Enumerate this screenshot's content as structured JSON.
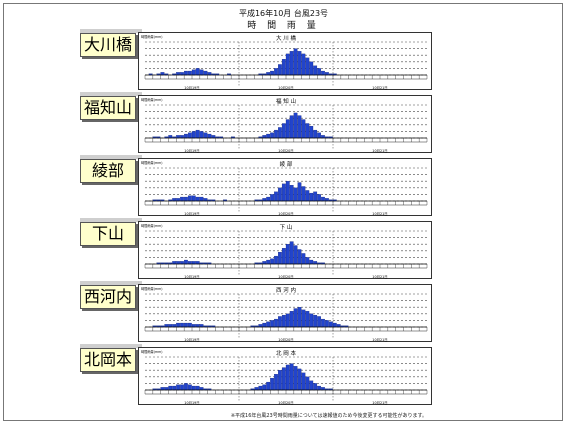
{
  "header": {
    "title": "平成16年10月 台風23号",
    "subtitle": "時 間 雨 量"
  },
  "footnote": "※平成16年台風23号時間雨量については速報値のため今後変更する可能性があります。",
  "colors": {
    "bar": "#2244cc",
    "label_bg": "#ffffcc",
    "grid": "#444444"
  },
  "chart_data": [
    {
      "type": "bar",
      "station": "大川橋",
      "title": "大 川 橋",
      "ylabel": "時間雨量(mm)",
      "x_ticks": [
        "10月19日",
        "10月20日",
        "10月21日"
      ],
      "values": [
        0,
        1,
        0,
        1,
        2,
        1,
        0,
        1,
        2,
        2,
        3,
        3,
        4,
        5,
        4,
        3,
        2,
        1,
        1,
        0,
        0,
        1,
        0,
        0,
        0,
        0,
        0,
        0,
        0,
        1,
        1,
        2,
        3,
        5,
        8,
        12,
        16,
        18,
        20,
        18,
        16,
        13,
        10,
        7,
        5,
        3,
        2,
        1,
        1,
        0,
        0,
        0,
        0,
        0,
        0,
        0,
        0,
        0,
        0,
        0,
        0,
        0,
        0,
        0,
        0,
        0,
        0,
        0,
        0,
        0,
        0,
        0
      ],
      "ylim": [
        0,
        25
      ]
    },
    {
      "type": "bar",
      "station": "福知山",
      "title": "福 知 山",
      "ylabel": "時間雨量(mm)",
      "x_ticks": [
        "10月19日",
        "10月20日",
        "10月21日"
      ],
      "values": [
        0,
        0,
        1,
        1,
        0,
        1,
        2,
        1,
        2,
        2,
        3,
        4,
        5,
        6,
        5,
        4,
        3,
        2,
        1,
        1,
        0,
        0,
        1,
        0,
        0,
        0,
        0,
        0,
        0,
        1,
        2,
        3,
        4,
        6,
        8,
        11,
        14,
        17,
        19,
        17,
        14,
        11,
        9,
        6,
        4,
        2,
        1,
        1,
        0,
        0,
        0,
        0,
        0,
        0,
        0,
        0,
        0,
        0,
        0,
        0,
        0,
        0,
        0,
        0,
        0,
        0,
        0,
        0,
        0,
        0,
        0,
        0
      ],
      "ylim": [
        0,
        25
      ]
    },
    {
      "type": "bar",
      "station": "綾部",
      "title": "綾 部",
      "ylabel": "時間雨量(mm)",
      "x_ticks": [
        "10月19日",
        "10月20日",
        "10月21日"
      ],
      "values": [
        0,
        0,
        1,
        1,
        1,
        0,
        1,
        2,
        2,
        3,
        3,
        4,
        4,
        3,
        3,
        2,
        1,
        1,
        0,
        0,
        1,
        0,
        0,
        0,
        0,
        0,
        0,
        0,
        1,
        1,
        2,
        3,
        5,
        7,
        10,
        13,
        15,
        12,
        10,
        14,
        11,
        8,
        6,
        7,
        5,
        3,
        2,
        1,
        1,
        0,
        0,
        0,
        0,
        0,
        0,
        0,
        0,
        0,
        0,
        0,
        0,
        0,
        0,
        0,
        0,
        0,
        0,
        0,
        0,
        0,
        0,
        0
      ],
      "ylim": [
        0,
        25
      ]
    },
    {
      "type": "bar",
      "station": "下山",
      "title": "下 山",
      "ylabel": "時間雨量(mm)",
      "x_ticks": [
        "10月19日",
        "10月20日",
        "10月21日"
      ],
      "values": [
        0,
        0,
        0,
        1,
        1,
        1,
        1,
        2,
        2,
        2,
        3,
        2,
        2,
        2,
        1,
        1,
        1,
        0,
        0,
        0,
        0,
        0,
        0,
        0,
        0,
        0,
        0,
        0,
        1,
        1,
        2,
        3,
        4,
        6,
        9,
        12,
        15,
        17,
        14,
        11,
        8,
        5,
        3,
        2,
        1,
        1,
        0,
        0,
        0,
        0,
        0,
        0,
        0,
        0,
        0,
        0,
        0,
        0,
        0,
        0,
        0,
        0,
        0,
        0,
        0,
        0,
        0,
        0,
        0,
        0,
        0,
        0
      ],
      "ylim": [
        0,
        25
      ]
    },
    {
      "type": "bar",
      "station": "西河内",
      "title": "西 河 内",
      "ylabel": "時間雨量(mm)",
      "x_ticks": [
        "10月19日",
        "10月20日",
        "10月21日"
      ],
      "values": [
        0,
        0,
        1,
        1,
        1,
        2,
        2,
        2,
        3,
        3,
        3,
        3,
        2,
        2,
        2,
        1,
        1,
        1,
        0,
        0,
        0,
        0,
        0,
        0,
        0,
        0,
        0,
        1,
        1,
        2,
        3,
        4,
        5,
        6,
        8,
        9,
        10,
        12,
        14,
        15,
        13,
        12,
        10,
        9,
        8,
        6,
        5,
        4,
        3,
        2,
        1,
        1,
        0,
        0,
        0,
        0,
        0,
        0,
        0,
        0,
        0,
        0,
        0,
        0,
        0,
        0,
        0,
        0,
        0,
        0,
        0,
        0
      ],
      "ylim": [
        0,
        25
      ]
    },
    {
      "type": "bar",
      "station": "北岡本",
      "title": "北 岡 本",
      "ylabel": "時間雨量(mm)",
      "x_ticks": [
        "10月19日",
        "10月20日",
        "10月21日"
      ],
      "values": [
        0,
        0,
        1,
        1,
        2,
        2,
        3,
        3,
        4,
        4,
        5,
        4,
        3,
        3,
        2,
        1,
        1,
        0,
        0,
        0,
        0,
        0,
        0,
        0,
        0,
        0,
        0,
        1,
        2,
        3,
        4,
        6,
        9,
        12,
        15,
        17,
        19,
        20,
        18,
        16,
        13,
        10,
        7,
        5,
        3,
        2,
        1,
        1,
        0,
        0,
        0,
        0,
        0,
        0,
        0,
        0,
        0,
        0,
        0,
        0,
        0,
        0,
        0,
        0,
        0,
        0,
        0,
        0,
        0,
        0,
        0,
        0
      ],
      "ylim": [
        0,
        25
      ]
    }
  ]
}
